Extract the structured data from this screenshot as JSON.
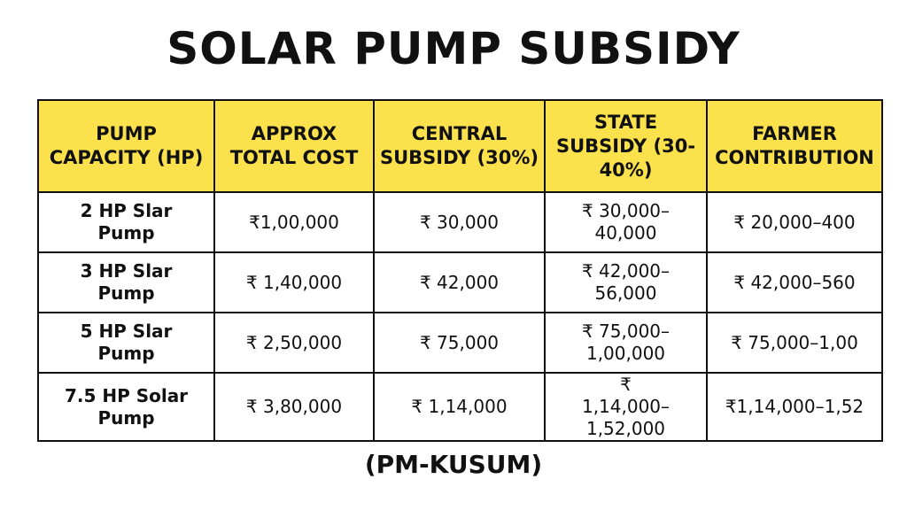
{
  "title": "SOLAR PUMP SUBSIDY",
  "table": {
    "headers": [
      "PUMP CAPACITY (HP)",
      "APPROX TOTAL COST",
      "CENTRAL SUBSIDY (30%)",
      "STATE SUBSIDY (30-40%)",
      "FARMER CONTRIBUTION"
    ],
    "rows": [
      [
        "2 HP Slar Pump",
        "₹1,00,000",
        "₹ 30,000",
        "₹ 30,000–40,000",
        "₹ 20,000–400"
      ],
      [
        "3 HP Slar Pump",
        "₹ 1,40,000",
        "₹ 42,000",
        "₹ 42,000–56,000",
        "₹ 42,000–560"
      ],
      [
        "5 HP Slar Pump",
        "₹ 2,50,000",
        "₹ 75,000",
        "₹ 75,000–1,00,000",
        "₹ 75,000–1,00"
      ],
      [
        "7.5 HP Solar Pump",
        "₹ 3,80,000",
        "₹ 1,14,000",
        "₹ 1,14,000–1,52,000",
        "₹1,14,000–1,52"
      ]
    ]
  },
  "footer": "(PM-KUSUM)"
}
